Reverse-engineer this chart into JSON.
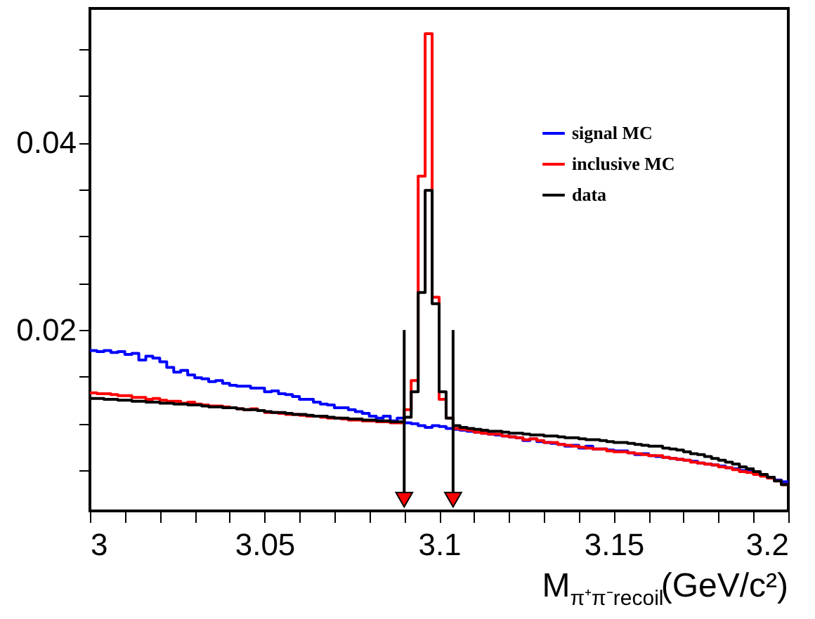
{
  "chart_data": {
    "type": "histogram",
    "xlabel": "M$_{π⁺π⁻recoil}$(GeV/c²)",
    "bins": [
      3.0,
      3.002,
      3.004,
      3.006,
      3.008,
      3.01,
      3.012,
      3.014,
      3.016,
      3.018,
      3.02,
      3.022,
      3.024,
      3.026,
      3.028,
      3.03,
      3.032,
      3.034,
      3.036,
      3.038,
      3.04,
      3.042,
      3.044,
      3.046,
      3.048,
      3.05,
      3.052,
      3.054,
      3.056,
      3.058,
      3.06,
      3.062,
      3.064,
      3.066,
      3.068,
      3.07,
      3.072,
      3.074,
      3.076,
      3.078,
      3.08,
      3.082,
      3.084,
      3.086,
      3.088,
      3.09,
      3.092,
      3.094,
      3.096,
      3.098,
      3.1,
      3.102,
      3.104,
      3.106,
      3.108,
      3.11,
      3.112,
      3.114,
      3.116,
      3.118,
      3.12,
      3.122,
      3.124,
      3.126,
      3.128,
      3.13,
      3.132,
      3.134,
      3.136,
      3.138,
      3.14,
      3.142,
      3.144,
      3.146,
      3.148,
      3.15,
      3.152,
      3.154,
      3.156,
      3.158,
      3.16,
      3.162,
      3.164,
      3.166,
      3.168,
      3.17,
      3.172,
      3.174,
      3.176,
      3.178,
      3.18,
      3.182,
      3.184,
      3.186,
      3.188,
      3.19,
      3.192,
      3.194,
      3.196,
      3.198,
      3.2
    ],
    "series": [
      {
        "name": "signal MC",
        "color": "#0000ff",
        "values": [
          0.0178,
          0.0177,
          0.0178,
          0.0176,
          0.0177,
          0.0174,
          0.0175,
          0.0168,
          0.0172,
          0.017,
          0.0166,
          0.016,
          0.0155,
          0.0157,
          0.0152,
          0.0149,
          0.0148,
          0.0145,
          0.0146,
          0.0143,
          0.0141,
          0.014,
          0.014,
          0.0138,
          0.0138,
          0.0134,
          0.0135,
          0.0132,
          0.0131,
          0.0129,
          0.0126,
          0.0126,
          0.0123,
          0.0121,
          0.012,
          0.0117,
          0.0117,
          0.0115,
          0.0113,
          0.0111,
          0.0108,
          0.0106,
          0.0108,
          0.0103,
          0.0106,
          0.0101,
          0.01,
          0.0098,
          0.0096,
          0.0098,
          0.0097,
          0.0095,
          0.0094,
          0.0093,
          0.0092,
          0.0091,
          0.009,
          0.0089,
          0.0088,
          0.0087,
          0.0086,
          0.0085,
          0.0082,
          0.0084,
          0.0081,
          0.008,
          0.0079,
          0.0078,
          0.0076,
          0.0077,
          0.0074,
          0.0076,
          0.0073,
          0.0073,
          0.0072,
          0.0071,
          0.0071,
          0.0069,
          0.0067,
          0.0068,
          0.0066,
          0.0065,
          0.0064,
          0.0063,
          0.0062,
          0.0061,
          0.006,
          0.0058,
          0.0057,
          0.0056,
          0.0055,
          0.0053,
          0.0052,
          0.005,
          0.0049,
          0.0047,
          0.0045,
          0.0043,
          0.004,
          0.0038
        ]
      },
      {
        "name": "inclusive MC",
        "color": "#ff0000",
        "values": [
          0.0133,
          0.0132,
          0.0132,
          0.0131,
          0.013,
          0.013,
          0.0128,
          0.0128,
          0.0126,
          0.0127,
          0.0125,
          0.0124,
          0.0124,
          0.0122,
          0.0123,
          0.0121,
          0.012,
          0.0119,
          0.0119,
          0.0118,
          0.0117,
          0.0116,
          0.0115,
          0.0116,
          0.0114,
          0.0112,
          0.0112,
          0.0111,
          0.011,
          0.011,
          0.0109,
          0.0108,
          0.0108,
          0.0107,
          0.0106,
          0.0106,
          0.0105,
          0.0104,
          0.0104,
          0.0103,
          0.0103,
          0.0102,
          0.0102,
          0.0101,
          0.0101,
          0.0115,
          0.0146,
          0.0364,
          0.0516,
          0.0235,
          0.0126,
          0.0106,
          0.0095,
          0.0094,
          0.0093,
          0.0091,
          0.009,
          0.0089,
          0.0089,
          0.0087,
          0.0086,
          0.0085,
          0.0083,
          0.0084,
          0.0082,
          0.008,
          0.008,
          0.0078,
          0.0077,
          0.0076,
          0.0075,
          0.0074,
          0.0073,
          0.0073,
          0.0071,
          0.007,
          0.007,
          0.0069,
          0.0068,
          0.0067,
          0.0066,
          0.0066,
          0.0064,
          0.0063,
          0.0062,
          0.0061,
          0.0059,
          0.0058,
          0.0057,
          0.0056,
          0.0054,
          0.0053,
          0.0051,
          0.0049,
          0.0048,
          0.0046,
          0.0044,
          0.0042,
          0.0039,
          0.0035
        ]
      },
      {
        "name": "data",
        "color": "#000000",
        "values": [
          0.0127,
          0.0127,
          0.0126,
          0.0126,
          0.0125,
          0.0125,
          0.0124,
          0.0124,
          0.0123,
          0.0123,
          0.0122,
          0.0122,
          0.0121,
          0.0121,
          0.012,
          0.012,
          0.0119,
          0.0118,
          0.0118,
          0.0117,
          0.0117,
          0.0116,
          0.0115,
          0.0115,
          0.0114,
          0.0113,
          0.0112,
          0.0112,
          0.0111,
          0.011,
          0.011,
          0.0109,
          0.0108,
          0.0108,
          0.0107,
          0.0106,
          0.0106,
          0.0105,
          0.0105,
          0.0104,
          0.0104,
          0.0103,
          0.0103,
          0.0102,
          0.0102,
          0.0107,
          0.0134,
          0.024,
          0.0349,
          0.0228,
          0.0134,
          0.0106,
          0.0098,
          0.0096,
          0.0095,
          0.0094,
          0.0093,
          0.0092,
          0.0092,
          0.0091,
          0.009,
          0.009,
          0.0089,
          0.0088,
          0.0088,
          0.0087,
          0.0087,
          0.0086,
          0.0085,
          0.0085,
          0.0084,
          0.0083,
          0.0083,
          0.0082,
          0.0081,
          0.008,
          0.008,
          0.0079,
          0.0078,
          0.0077,
          0.0076,
          0.0076,
          0.0074,
          0.0073,
          0.0072,
          0.007,
          0.0068,
          0.0067,
          0.0065,
          0.0063,
          0.0061,
          0.0059,
          0.0057,
          0.0054,
          0.0052,
          0.0049,
          0.0046,
          0.0043,
          0.0039,
          0.0035
        ]
      }
    ],
    "xlim": [
      3.0,
      3.2
    ],
    "xticks": [
      3,
      {
        "value": 3.01,
        "label": null
      },
      {
        "value": 3.02,
        "label": null
      },
      {
        "value": 3.03,
        "label": null
      },
      {
        "value": 3.04,
        "label": null
      },
      3.05,
      {
        "value": 3.06,
        "label": null
      },
      {
        "value": 3.07,
        "label": null
      },
      {
        "value": 3.08,
        "label": null
      },
      {
        "value": 3.09,
        "label": null
      },
      3.1,
      {
        "value": 3.11,
        "label": null
      },
      {
        "value": 3.12,
        "label": null
      },
      {
        "value": 3.13,
        "label": null
      },
      {
        "value": 3.14,
        "label": null
      },
      3.15,
      {
        "value": 3.16,
        "label": null
      },
      {
        "value": 3.17,
        "label": null
      },
      {
        "value": 3.18,
        "label": null
      },
      {
        "value": 3.19,
        "label": null
      },
      3.2
    ],
    "ylim": [
      0.0007,
      0.0543
    ],
    "yticks": [
      {
        "value": 0.005,
        "label": null
      },
      {
        "value": 0.01,
        "label": null
      },
      {
        "value": 0.015,
        "label": null
      },
      0.02,
      {
        "value": 0.025,
        "label": null
      },
      {
        "value": 0.03,
        "label": null
      },
      {
        "value": 0.035,
        "label": null
      },
      0.04,
      {
        "value": 0.045,
        "label": null
      },
      {
        "value": 0.05,
        "label": null
      }
    ],
    "ref_lines": [
      {
        "axis": "x",
        "value": 3.09,
        "color": "#000000"
      },
      {
        "axis": "x",
        "value": 3.104,
        "color": "#000000"
      }
    ],
    "legend": "top right",
    "grid": false
  }
}
